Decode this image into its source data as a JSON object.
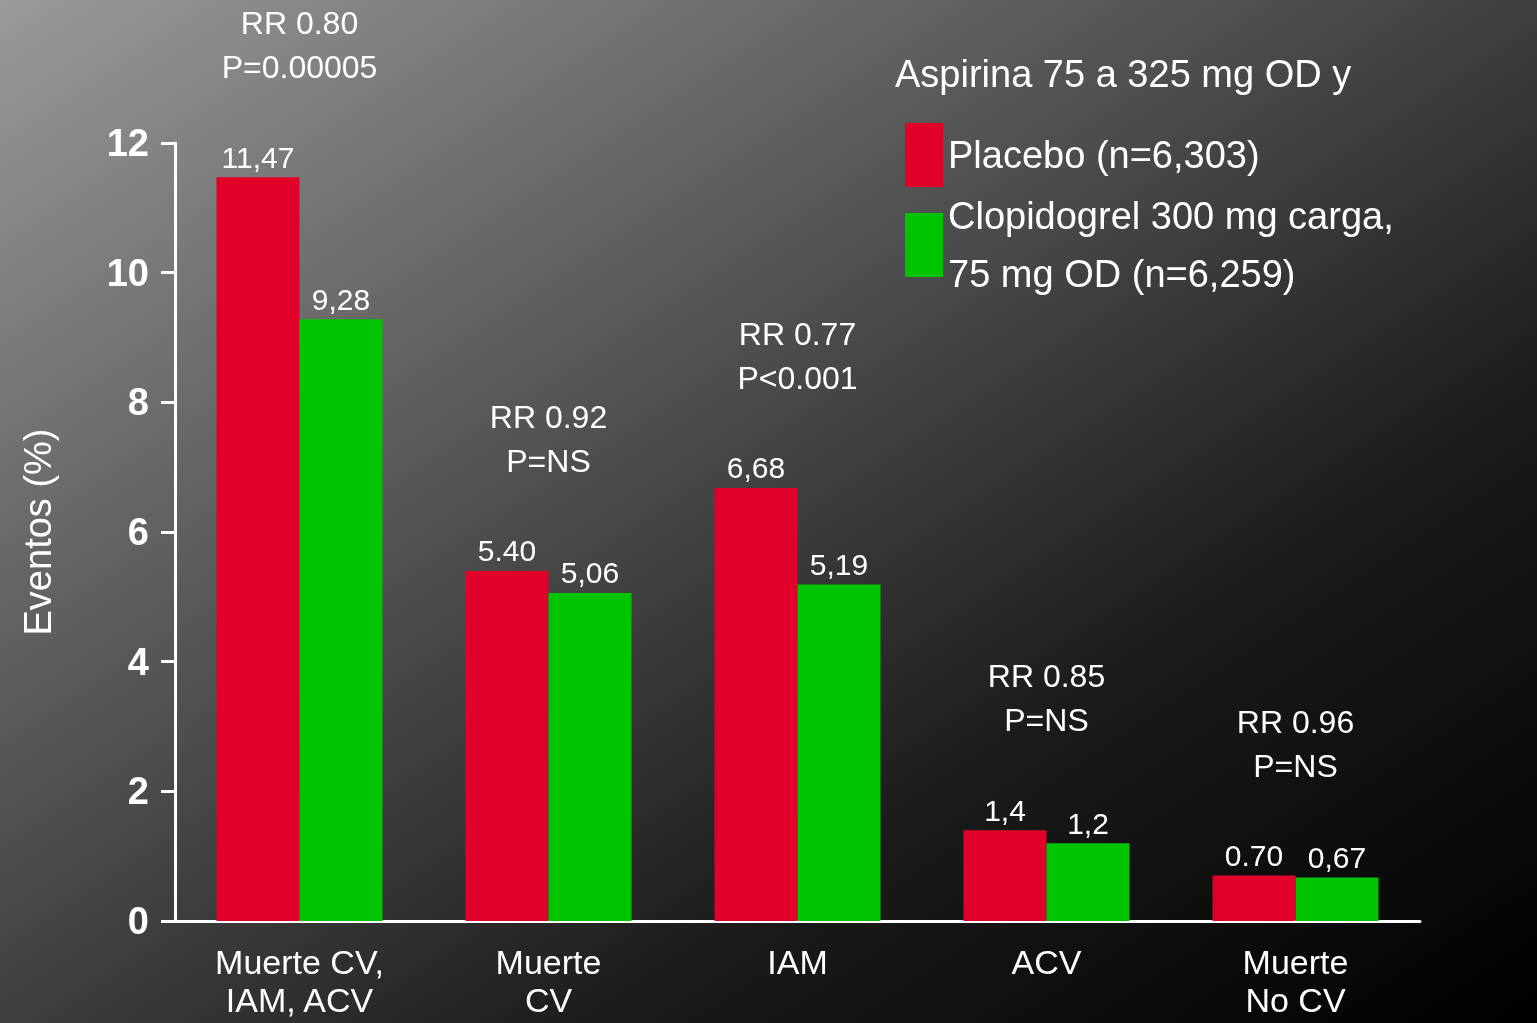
{
  "chart_data": {
    "type": "bar",
    "ylabel": "Eventos (%)",
    "legend_title": "Aspirina 75 a 325 mg OD y",
    "categories": [
      "Muerte CV,\nIAM, ACV",
      "Muerte\nCV",
      "IAM",
      "ACV",
      "Muerte\nNo CV"
    ],
    "series": [
      {
        "name": "Placebo (n=6,303)",
        "color": "#e0002a",
        "values": [
          11.47,
          5.4,
          6.68,
          1.4,
          0.7
        ],
        "value_labels": [
          "11,47",
          "5.40",
          "6,68",
          "1,4",
          "0.70"
        ]
      },
      {
        "name": "Clopidogrel 300 mg carga,\n75 mg OD (n=6,259)",
        "color": "#00c400",
        "values": [
          9.28,
          5.06,
          5.19,
          1.2,
          0.67
        ],
        "value_labels": [
          "9,28",
          "5,06",
          "5,19",
          "1,2",
          "0,67"
        ]
      }
    ],
    "ylim": [
      0,
      12
    ],
    "yticks": [
      0,
      2,
      4,
      6,
      8,
      10,
      12
    ],
    "grid": false,
    "legend": "top right",
    "annotations": [
      {
        "text": "RR 0.80\nP=0.00005",
        "x": "Muerte CV,\nIAM, ACV",
        "y": 11.47
      },
      {
        "text": "RR 0.92\nP=NS",
        "x": "Muerte\nCV",
        "y": 5.4
      },
      {
        "text": "RR 0.77\nP<0.001",
        "x": "IAM",
        "y": 6.68
      },
      {
        "text": "RR 0.85\nP=NS",
        "x": "ACV",
        "y": 1.4
      },
      {
        "text": "RR 0.96\nP=NS",
        "x": "Muerte\nNo CV",
        "y": 0.7
      }
    ]
  }
}
